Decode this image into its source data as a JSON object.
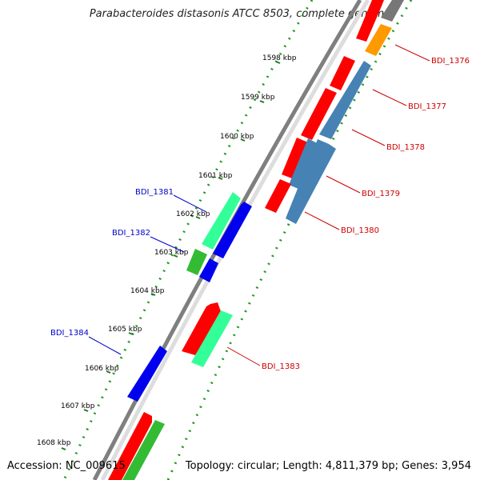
{
  "title": "Parabacteroides distasonis ATCC 8503, complete genome",
  "footer": {
    "accession": "Accession: NC_009615",
    "topology": "Topology: circular; Length: 4,811,379 bp; Genes: 3,954"
  },
  "colors": {
    "backbone": "#7f7f7f",
    "ticks": "#1f7a1f",
    "red": "#ff0000",
    "blue": "#0000ee",
    "steelblue": "#4682b4",
    "aqua": "#33ff99",
    "green": "#33bb33",
    "orange": "#ff9900",
    "gray": "#777777",
    "label_forward": "#cc0000",
    "label_reverse": "#0000cc"
  },
  "kbp_labels": [
    "1598 kbp",
    "1599 kbp",
    "1600 kbp",
    "1601 kbp",
    "1602 kbp",
    "1603 kbp",
    "1604 kbp",
    "1605 kbp",
    "1606 kbp",
    "1607 kbp",
    "1608 kbp"
  ],
  "gene_labels": {
    "forward": [
      "BDI_1376",
      "BDI_1377",
      "BDI_1378",
      "BDI_1379",
      "BDI_1380",
      "BDI_1383"
    ],
    "reverse": [
      "BDI_1381",
      "BDI_1382",
      "BDI_1384"
    ]
  }
}
